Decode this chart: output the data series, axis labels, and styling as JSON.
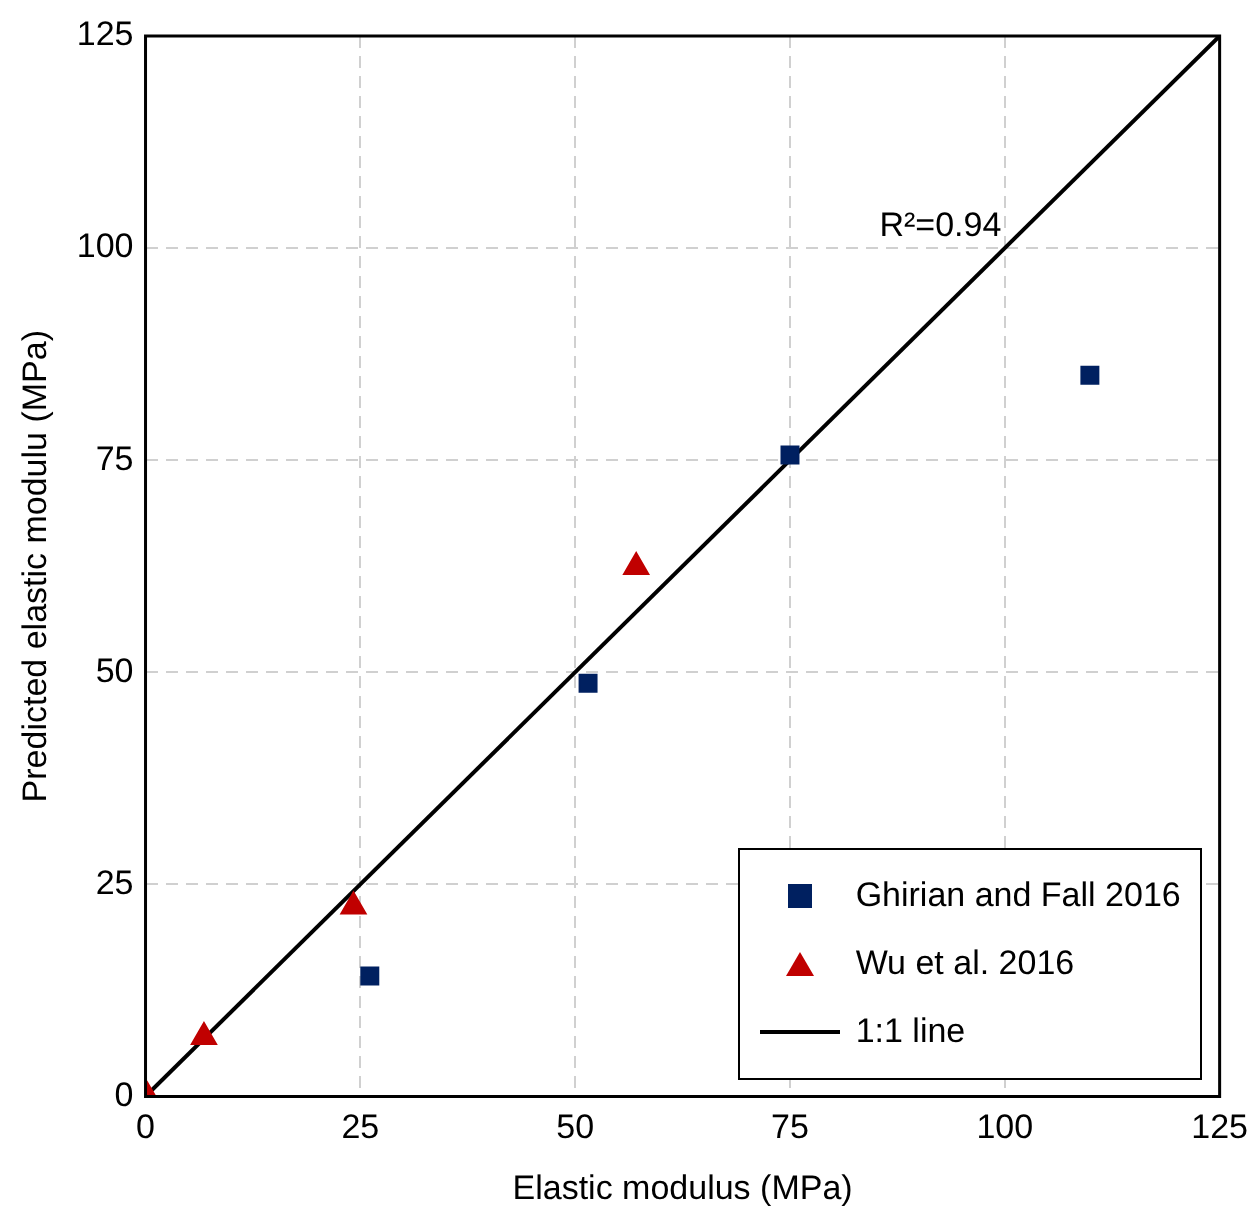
{
  "chart_data": {
    "type": "scatter",
    "xlabel": "Elastic modulus (MPa)",
    "ylabel": "Predicted elastic modulu (MPa)",
    "xlim": [
      0,
      125
    ],
    "ylim": [
      0,
      125
    ],
    "xticks": [
      0,
      25,
      50,
      75,
      100,
      125
    ],
    "yticks": [
      0,
      25,
      50,
      75,
      100,
      125
    ],
    "grid": true,
    "legend": "bottom right",
    "annotations": [
      "R²=0.94"
    ],
    "series": [
      {
        "name": "Ghirian and Fall 2016",
        "type": "scatter",
        "marker": "square",
        "color": "#002060",
        "x": [
          26.1,
          51.5,
          75.0,
          109.9
        ],
        "values": [
          14.2,
          48.7,
          75.6,
          85.0
        ]
      },
      {
        "name": "Wu et al. 2016",
        "type": "scatter",
        "marker": "triangle",
        "color": "#c00000",
        "x": [
          0.2,
          6.8,
          24.2,
          57.1
        ],
        "values": [
          0,
          7.0,
          22.4,
          62.4
        ]
      },
      {
        "name": "1:1 line",
        "type": "line",
        "marker": "none",
        "line_style": "solid",
        "color": "#000000",
        "x": [
          0,
          125
        ],
        "values": [
          0,
          125
        ]
      }
    ]
  }
}
